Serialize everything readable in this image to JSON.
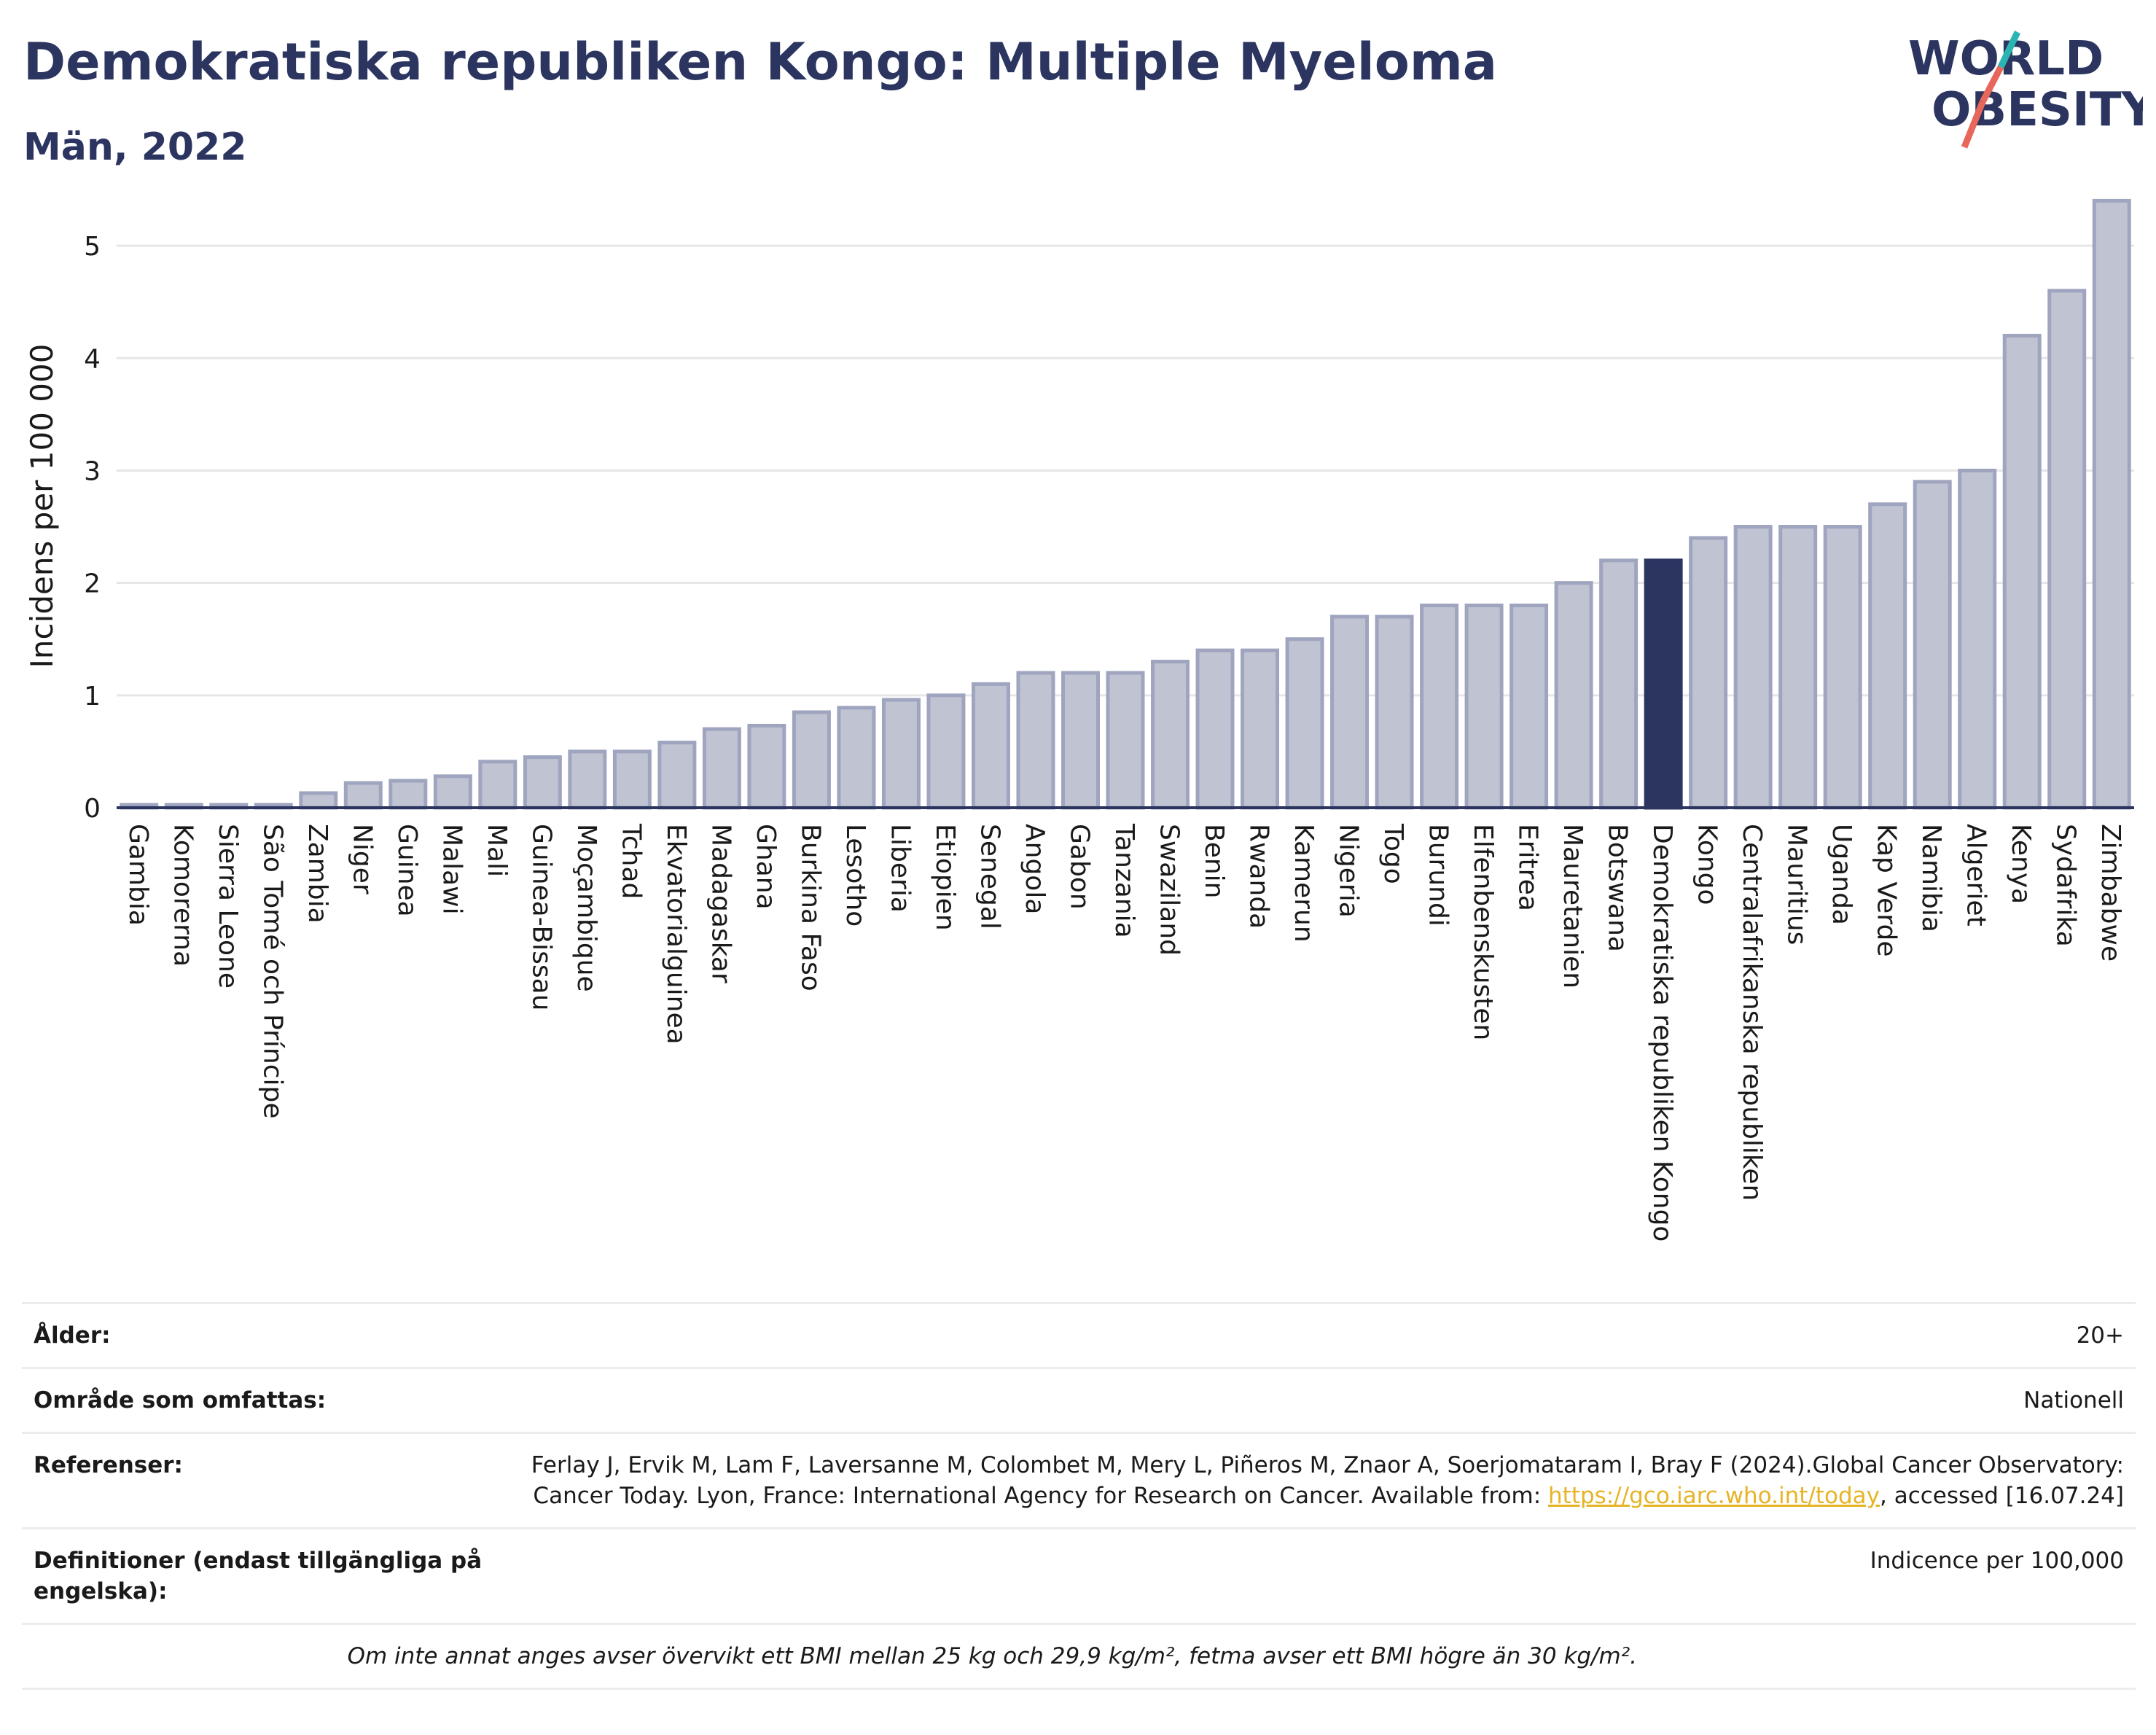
{
  "header": {
    "title": "Demokratiska republiken Kongo: Multiple Myeloma",
    "subtitle": "Män, 2022",
    "logo_line1": "WORLD",
    "logo_line2": "OBESITY"
  },
  "colors": {
    "highlight": "#2b3560",
    "bar_fill": "#bfc3d2",
    "bar_stroke": "#9fa5bf",
    "logo_teal": "#2bb5b2",
    "logo_red": "#e8675b"
  },
  "chart_data": {
    "type": "bar",
    "ylabel": "Incidens per 100 000",
    "ylim": [
      0,
      5.5
    ],
    "yticks": [
      0,
      1,
      2,
      3,
      4,
      5
    ],
    "grid": true,
    "highlight_category": "Demokratiska republiken Kongo",
    "categories": [
      "Gambia",
      "Komorerna",
      "Sierra Leone",
      "São Tomé och Príncipe",
      "Zambia",
      "Niger",
      "Guinea",
      "Malawi",
      "Mali",
      "Guinea-Bissau",
      "Moçambique",
      "Tchad",
      "Ekvatorialguinea",
      "Madagaskar",
      "Ghana",
      "Burkina Faso",
      "Lesotho",
      "Liberia",
      "Etiopien",
      "Senegal",
      "Angola",
      "Gabon",
      "Tanzania",
      "Swaziland",
      "Benin",
      "Rwanda",
      "Kamerun",
      "Nigeria",
      "Togo",
      "Burundi",
      "Elfenbenskusten",
      "Eritrea",
      "Mauretanien",
      "Botswana",
      "Demokratiska republiken Kongo",
      "Kongo",
      "Centralafrikanska republiken",
      "Mauritius",
      "Uganda",
      "Kap Verde",
      "Namibia",
      "Algeriet",
      "Kenya",
      "Sydafrika",
      "Zimbabwe"
    ],
    "values": [
      0.01,
      0.01,
      0.01,
      0.01,
      0.13,
      0.22,
      0.24,
      0.28,
      0.41,
      0.45,
      0.5,
      0.5,
      0.58,
      0.7,
      0.73,
      0.85,
      0.89,
      0.96,
      1.0,
      1.1,
      1.2,
      1.2,
      1.2,
      1.3,
      1.4,
      1.4,
      1.5,
      1.7,
      1.7,
      1.8,
      1.8,
      1.8,
      2.0,
      2.2,
      2.2,
      2.4,
      2.5,
      2.5,
      2.5,
      2.7,
      2.9,
      3.0,
      4.2,
      4.6,
      5.4
    ]
  },
  "info": {
    "age_label": "Ålder:",
    "age_value": "20+",
    "area_label": "Område som omfattas:",
    "area_value": "Nationell",
    "ref_label": "Referenser:",
    "ref_text_1": "Ferlay J, Ervik M, Lam F, Laversanne M, Colombet M, Mery L, Piñeros M, Znaor A, Soerjomataram I, Bray F (2024).Global Cancer Observatory: Cancer Today. Lyon, France: International Agency for Research on Cancer. Available from: ",
    "ref_link": "https://gco.iarc.who.int/today",
    "ref_text_2": ", accessed [16.07.24]",
    "def_label": "Definitioner (endast tillgängliga på engelska):",
    "def_value": "Indicence per 100,000",
    "note": "Om inte annat anges avser övervikt ett BMI mellan 25 kg och 29,9 kg/m², fetma avser ett BMI högre än 30 kg/m²."
  }
}
